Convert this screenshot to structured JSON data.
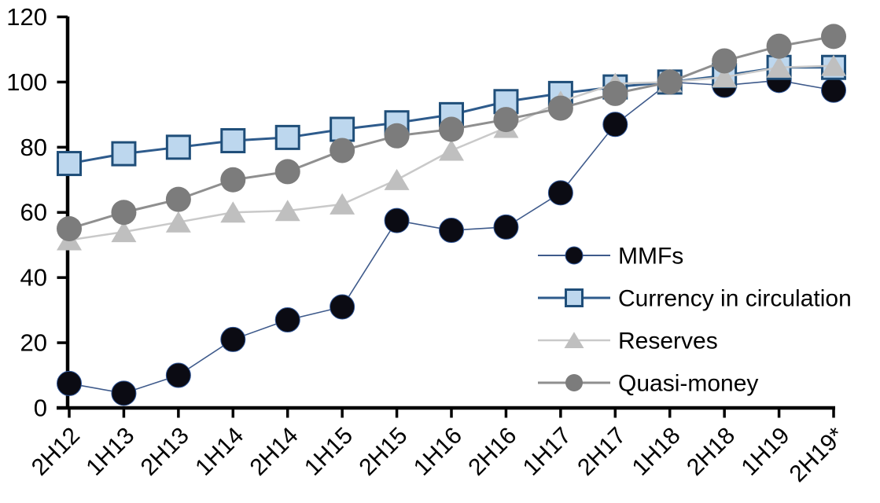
{
  "chart_data": {
    "type": "line",
    "title": "",
    "xlabel": "",
    "ylabel": "",
    "categories": [
      "2H12",
      "1H13",
      "2H13",
      "1H14",
      "2H14",
      "1H15",
      "2H15",
      "1H16",
      "2H16",
      "1H17",
      "2H17",
      "1H18",
      "2H18",
      "1H19",
      "2H19*"
    ],
    "series": [
      {
        "name": "MMFs",
        "marker": "circle",
        "marker_color": "#0b0b13",
        "marker_border": "#2f5597",
        "line_color": "#3e5a8b",
        "line_width": 1.6,
        "marker_size": 31,
        "values": [
          7.5,
          4.5,
          10,
          21,
          27,
          31,
          57.5,
          54.5,
          55.5,
          66,
          87,
          100,
          99,
          100.5,
          97.5
        ]
      },
      {
        "name": "Currency in circulation",
        "marker": "square",
        "marker_color": "#bdd7ee",
        "marker_border": "#1f4e79",
        "line_color": "#2e5b8c",
        "line_width": 3,
        "marker_size": 29,
        "values": [
          75,
          78,
          80,
          82,
          83,
          85.5,
          87.5,
          90,
          94,
          96.5,
          98.5,
          100,
          102,
          104.5,
          104.5
        ]
      },
      {
        "name": "Reserves",
        "marker": "triangle",
        "marker_color": "#bfbfbf",
        "marker_border": "none",
        "line_color": "#c9c9c9",
        "line_width": 2.5,
        "marker_size": 30,
        "values": [
          51.5,
          54,
          57,
          60,
          60.5,
          62.5,
          70,
          79,
          86,
          94,
          99.5,
          100,
          101.5,
          104.5,
          105
        ]
      },
      {
        "name": "Quasi-money",
        "marker": "circle",
        "marker_color": "#7c7c7c",
        "marker_border": "none",
        "line_color": "#8f8f8f",
        "line_width": 3,
        "marker_size": 32,
        "values": [
          55,
          60,
          64,
          70,
          72.5,
          79,
          83.5,
          85.5,
          88.5,
          92,
          96.5,
          100,
          106.5,
          111,
          114
        ]
      }
    ],
    "ylim": [
      0,
      120
    ],
    "ytick_step": 20,
    "ytick_labels": [
      "0",
      "20",
      "40",
      "60",
      "80",
      "100",
      "120"
    ],
    "grid": "off",
    "legend_position": "inside-right",
    "legend_entries": [
      "MMFs",
      "Currency in circulation",
      "Reserves",
      "Quasi-money"
    ],
    "axis_color": "#000000",
    "note_suffix_on_last_category": "*"
  }
}
